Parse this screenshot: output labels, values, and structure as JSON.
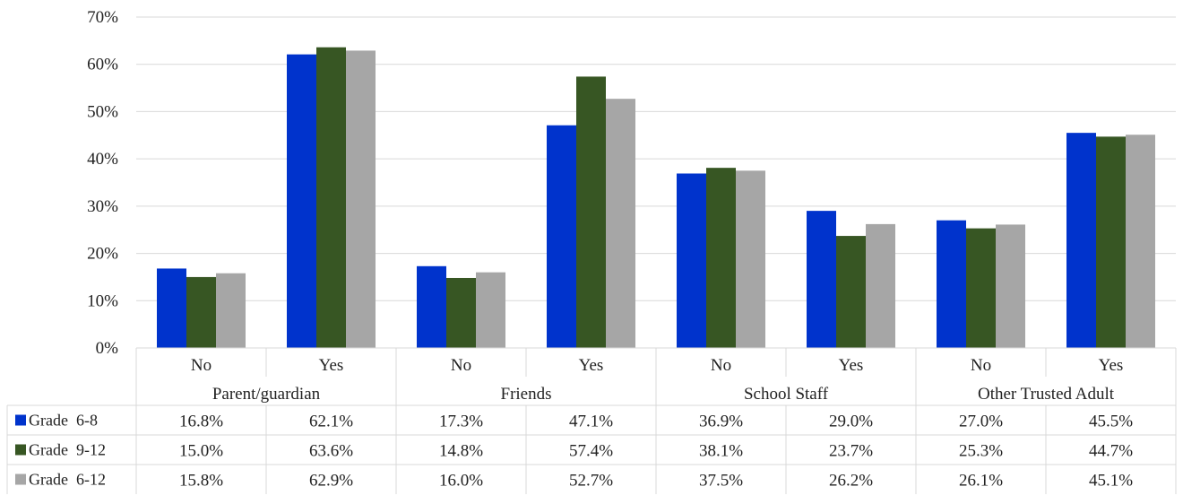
{
  "chart_data": {
    "type": "bar",
    "title": "",
    "xlabel": "",
    "ylabel": "",
    "ylim": [
      0,
      70
    ],
    "yticks": [
      "0%",
      "10%",
      "20%",
      "30%",
      "40%",
      "50%",
      "60%",
      "70%"
    ],
    "grid": true,
    "legend_placement": "left of data table",
    "groups": [
      {
        "label": "Parent/guardian",
        "categories": [
          "No",
          "Yes"
        ]
      },
      {
        "label": "Friends",
        "categories": [
          "No",
          "Yes"
        ]
      },
      {
        "label": "School Staff",
        "categories": [
          "No",
          "Yes"
        ]
      },
      {
        "label": "Other Trusted Adult",
        "categories": [
          "No",
          "Yes"
        ]
      }
    ],
    "series": [
      {
        "name": "Grade  6-8",
        "color": "#0033cc",
        "values": [
          16.8,
          62.1,
          17.3,
          47.1,
          36.9,
          29.0,
          27.0,
          45.5
        ],
        "labels": [
          "16.8%",
          "62.1%",
          "17.3%",
          "47.1%",
          "36.9%",
          "29.0%",
          "27.0%",
          "45.5%"
        ]
      },
      {
        "name": "Grade  9-12",
        "color": "#375623",
        "values": [
          15.0,
          63.6,
          14.8,
          57.4,
          38.1,
          23.7,
          25.3,
          44.7
        ],
        "labels": [
          "15.0%",
          "63.6%",
          "14.8%",
          "57.4%",
          "38.1%",
          "23.7%",
          "25.3%",
          "44.7%"
        ]
      },
      {
        "name": "Grade  6-12",
        "color": "#a6a6a6",
        "values": [
          15.8,
          62.9,
          16.0,
          52.7,
          37.5,
          26.2,
          26.1,
          45.1
        ],
        "labels": [
          "15.8%",
          "62.9%",
          "16.0%",
          "52.7%",
          "37.5%",
          "26.2%",
          "26.1%",
          "45.1%"
        ]
      }
    ]
  }
}
